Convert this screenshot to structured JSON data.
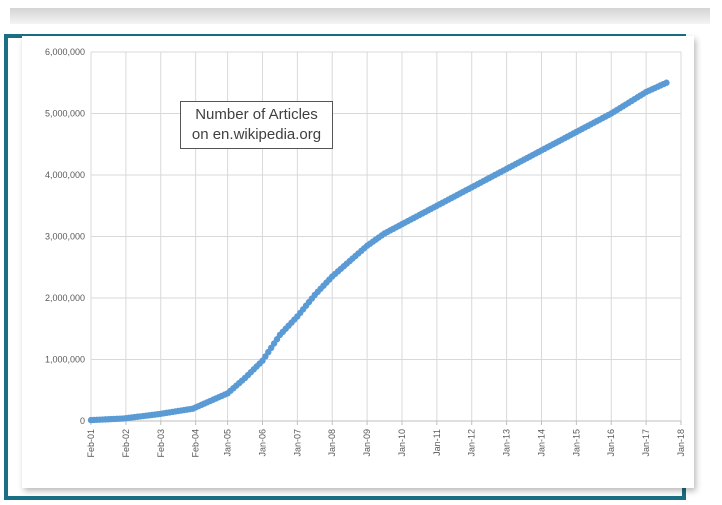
{
  "chart_data": {
    "type": "scatter",
    "title_lines": [
      "Number of Articles",
      "on en.wikipedia.org"
    ],
    "x_tick_labels": [
      "Feb-01",
      "Feb-02",
      "Feb-03",
      "Feb-04",
      "Jan-05",
      "Jan-06",
      "Jan-07",
      "Jan-08",
      "Jan-09",
      "Jan-10",
      "Jan-11",
      "Jan-12",
      "Jan-13",
      "Jan-14",
      "Jan-15",
      "Jan-16",
      "Jan-17",
      "Jan-18"
    ],
    "y_tick_labels": [
      "0",
      "1,000,000",
      "2,000,000",
      "3,000,000",
      "4,000,000",
      "5,000,000",
      "6,000,000"
    ],
    "ylim": [
      0,
      6000000
    ],
    "grid": true,
    "marker_color": "#5b9bd5",
    "x": [
      "Feb-01",
      "Jan-02",
      "Jan-03",
      "Jan-04",
      "Jan-05",
      "Jul-05",
      "Jan-06",
      "Jul-06",
      "Jan-07",
      "Jul-07",
      "Jan-08",
      "Jul-08",
      "Jan-09",
      "Jul-09",
      "Jan-10",
      "Jan-11",
      "Jan-12",
      "Jan-13",
      "Jan-14",
      "Jan-15",
      "Jan-16",
      "Jan-17",
      "Aug-17"
    ],
    "values": [
      15000,
      40000,
      110000,
      200000,
      450000,
      700000,
      980000,
      1400000,
      1700000,
      2050000,
      2350000,
      2600000,
      2850000,
      3050000,
      3200000,
      3500000,
      3800000,
      4100000,
      4400000,
      4700000,
      5000000,
      5350000,
      5500000
    ]
  }
}
